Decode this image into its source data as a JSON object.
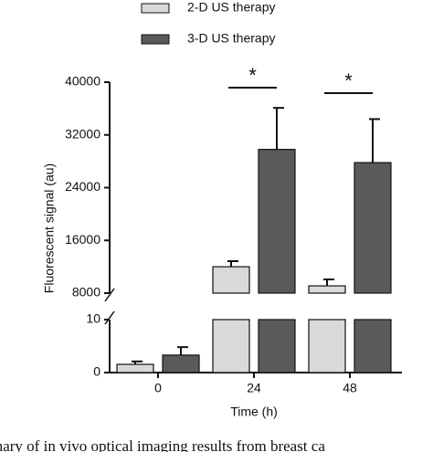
{
  "chart_data": {
    "type": "bar",
    "y_label": "Fluorescent signal (au)",
    "x_label": "Time (h)",
    "categories": [
      "0",
      "24",
      "48"
    ],
    "series": [
      {
        "name": "2-D US therapy",
        "color": "#d9d9d9",
        "values": [
          1.55,
          12000,
          9100
        ],
        "errors": [
          0.55,
          850,
          980
        ]
      },
      {
        "name": "3-D US therapy",
        "color": "#5a5a5a",
        "values": [
          3.3,
          29800,
          27800
        ],
        "errors": [
          1.5,
          6300,
          6600
        ]
      }
    ],
    "y_segments": [
      {
        "ylim": [
          0,
          10
        ],
        "yticks": [
          0,
          10
        ]
      },
      {
        "ylim": [
          8000,
          40000
        ],
        "yticks": [
          8000,
          16000,
          24000,
          32000,
          40000
        ]
      }
    ],
    "annotations": [
      "*",
      "*"
    ],
    "caption": "mary of in vivo optical imaging results from breast ca"
  }
}
